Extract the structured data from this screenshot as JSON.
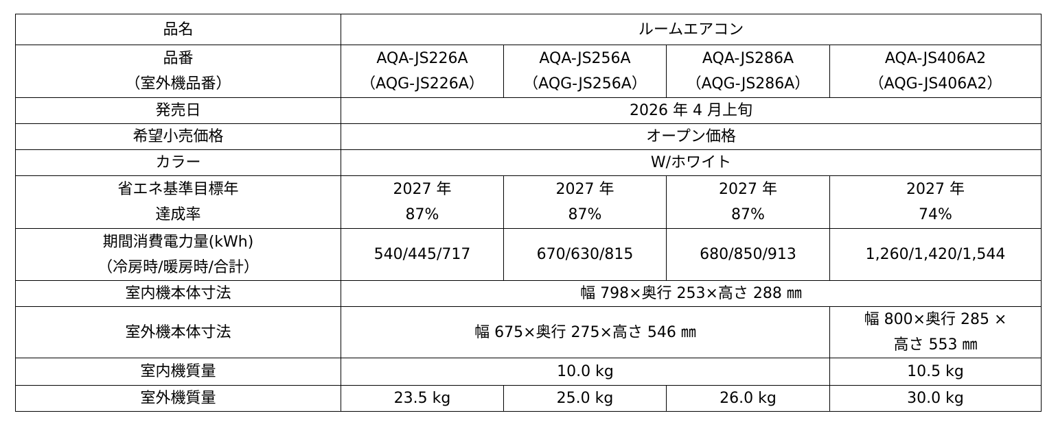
{
  "table": {
    "rows": [
      {
        "label": [
          "品名"
        ],
        "cells": [
          [
            "ルームエアコン"
          ]
        ]
      },
      {
        "label": [
          "品番",
          "（室外機品番）"
        ],
        "cells": [
          [
            "AQA-JS226A",
            "（AQG-JS226A）"
          ],
          [
            "AQA-JS256A",
            "（AQG-JS256A）"
          ],
          [
            "AQA-JS286A",
            "（AQG-JS286A）"
          ],
          [
            "AQA-JS406A2",
            "（AQG-JS406A2）"
          ]
        ]
      },
      {
        "label": [
          "発売日"
        ],
        "cells": [
          [
            "2026 年 4 月上旬"
          ]
        ]
      },
      {
        "label": [
          "希望小売価格"
        ],
        "cells": [
          [
            "オープン価格"
          ]
        ]
      },
      {
        "label": [
          "カラー"
        ],
        "cells": [
          [
            "W/ホワイト"
          ]
        ]
      },
      {
        "label": [
          "省エネ基準目標年",
          "達成率"
        ],
        "cells": [
          [
            "2027 年",
            "87%"
          ],
          [
            "2027 年",
            "87%"
          ],
          [
            "2027 年",
            "87%"
          ],
          [
            "2027 年",
            "74%"
          ]
        ]
      },
      {
        "label": [
          "期間消費電力量(kWh)",
          "（冷房時/暖房時/合計）"
        ],
        "cells": [
          [
            "540/445/717"
          ],
          [
            "670/630/815"
          ],
          [
            "680/850/913"
          ],
          [
            "1,260/1,420/1,544"
          ]
        ]
      },
      {
        "label": [
          "室内機本体寸法"
        ],
        "cells": [
          [
            "幅 798×奥行 253×高さ 288 ㎜"
          ]
        ]
      },
      {
        "label": [
          "室外機本体寸法"
        ],
        "cells": [
          [
            "幅 675×奥行 275×高さ 546 ㎜"
          ],
          [
            "幅 800×奥行 285 ×",
            "高さ 553 ㎜"
          ]
        ]
      },
      {
        "label": [
          "室内機質量"
        ],
        "cells": [
          [
            "10.0 kg"
          ],
          [
            "10.5 kg"
          ]
        ]
      },
      {
        "label": [
          "室外機質量"
        ],
        "cells": [
          [
            "23.5 kg"
          ],
          [
            "25.0 kg"
          ],
          [
            "26.0 kg"
          ],
          [
            "30.0 kg"
          ]
        ]
      }
    ]
  }
}
